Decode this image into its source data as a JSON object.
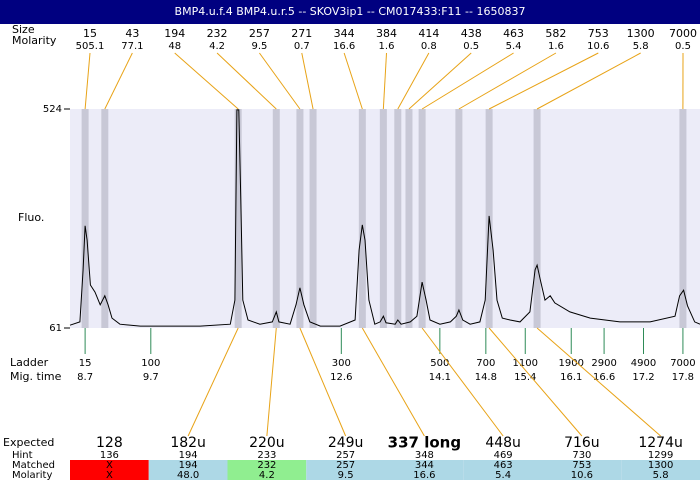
{
  "chart_data": {
    "type": "electropherogram",
    "title": "BMP4.u.f.4  BMP4.u.r.5 -- SKOV3ip1 -- CM017433:F11 -- 1650837",
    "size_label": "Size",
    "molarity_label": "Molarity",
    "y_label": "Fluo.",
    "ladder_label": "Ladder",
    "time_label": "Mig. time",
    "xlim": [
      8.47,
      18.06
    ],
    "ylim": [
      61,
      524
    ],
    "yticks": [
      61,
      524
    ],
    "peaks": [
      {
        "size": 15,
        "molarity": 505.1,
        "time": 8.7
      },
      {
        "size": 43,
        "molarity": 77.1,
        "time": 9.0
      },
      {
        "size": 194,
        "molarity": 48,
        "time": 11.03
      },
      {
        "size": 232,
        "molarity": 4.2,
        "time": 11.61
      },
      {
        "size": 257,
        "molarity": 9.5,
        "time": 11.97
      },
      {
        "size": 271,
        "molarity": 0.7,
        "time": 12.17
      },
      {
        "size": 344,
        "molarity": 16.6,
        "time": 12.92
      },
      {
        "size": 384,
        "molarity": 1.6,
        "time": 13.24
      },
      {
        "size": 414,
        "molarity": 0.8,
        "time": 13.46
      },
      {
        "size": 438,
        "molarity": 0.5,
        "time": 13.63
      },
      {
        "size": 463,
        "molarity": 5.4,
        "time": 13.83
      },
      {
        "size": 582,
        "molarity": 1.6,
        "time": 14.39
      },
      {
        "size": 753,
        "molarity": 10.6,
        "time": 14.85
      },
      {
        "size": 1300,
        "molarity": 5.8,
        "time": 15.58
      },
      {
        "size": 7000,
        "molarity": 0.5,
        "time": 17.8
      }
    ],
    "ladder": [
      {
        "size": 15,
        "time": 8.7
      },
      {
        "size": 100,
        "time": 9.7
      },
      {
        "size": 300,
        "time": 12.6
      },
      {
        "size": 500,
        "time": 14.1
      },
      {
        "size": 700,
        "time": 14.8
      },
      {
        "size": 1100,
        "time": 15.4
      },
      {
        "size": 1900,
        "time": 16.1
      },
      {
        "size": 2900,
        "time": 16.6
      },
      {
        "size": 4900,
        "time": 17.2
      },
      {
        "size": 7000,
        "time": 17.8
      }
    ],
    "trace": {
      "time": [
        8.47,
        8.62,
        8.67,
        8.7,
        8.73,
        8.78,
        8.85,
        8.93,
        9.0,
        9.05,
        9.11,
        9.23,
        9.54,
        10.45,
        10.91,
        10.98,
        11.01,
        11.04,
        11.07,
        11.1,
        11.18,
        11.36,
        11.55,
        11.61,
        11.65,
        11.82,
        11.91,
        11.97,
        12.03,
        12.12,
        12.28,
        12.58,
        12.81,
        12.87,
        12.92,
        12.96,
        13.02,
        13.11,
        13.19,
        13.24,
        13.28,
        13.42,
        13.46,
        13.51,
        13.65,
        13.75,
        13.83,
        13.89,
        13.95,
        14.1,
        14.26,
        14.35,
        14.39,
        14.45,
        14.56,
        14.71,
        14.79,
        14.85,
        14.91,
        14.97,
        15.05,
        15.17,
        15.32,
        15.47,
        15.55,
        15.58,
        15.63,
        15.7,
        15.78,
        15.85,
        16.08,
        16.39,
        16.84,
        17.3,
        17.68,
        17.75,
        17.81,
        17.87,
        17.98,
        18.06
      ],
      "fluo": [
        67,
        74,
        184,
        277,
        247,
        152,
        137,
        110,
        129,
        110,
        82,
        69,
        65,
        65,
        69,
        120,
        522,
        522,
        332,
        120,
        78,
        69,
        74,
        95,
        74,
        69,
        110,
        146,
        110,
        74,
        65,
        65,
        78,
        226,
        279,
        247,
        120,
        69,
        74,
        86,
        72,
        69,
        78,
        69,
        74,
        86,
        158,
        120,
        78,
        69,
        74,
        86,
        99,
        78,
        69,
        74,
        120,
        298,
        226,
        120,
        82,
        78,
        74,
        95,
        184,
        194,
        162,
        120,
        129,
        114,
        95,
        82,
        74,
        74,
        86,
        129,
        141,
        108,
        74,
        69
      ]
    },
    "table": {
      "row_labels": [
        "Expected",
        "Hint",
        "Matched",
        "Molarity"
      ],
      "columns": [
        {
          "expected": "128",
          "hint": "136",
          "matched": "X",
          "molarity": "X",
          "color": "#ff0000"
        },
        {
          "expected": "182u",
          "hint": "194",
          "matched": "194",
          "molarity": "48.0",
          "color": "#add8e6"
        },
        {
          "expected": "220u",
          "hint": "233",
          "matched": "232",
          "molarity": "4.2",
          "color": "#90ee90"
        },
        {
          "expected": "249u",
          "hint": "257",
          "matched": "257",
          "molarity": "9.5",
          "color": "#add8e6"
        },
        {
          "expected": "337 long",
          "hint": "348",
          "matched": "344",
          "molarity": "16.6",
          "color": "#add8e6"
        },
        {
          "expected": "448u",
          "hint": "469",
          "matched": "463",
          "molarity": "5.4",
          "color": "#add8e6"
        },
        {
          "expected": "716u",
          "hint": "730",
          "matched": "753",
          "molarity": "10.6",
          "color": "#add8e6"
        },
        {
          "expected": "1274u",
          "hint": "1299",
          "matched": "1300",
          "molarity": "5.8",
          "color": "#add8e6"
        }
      ]
    }
  }
}
